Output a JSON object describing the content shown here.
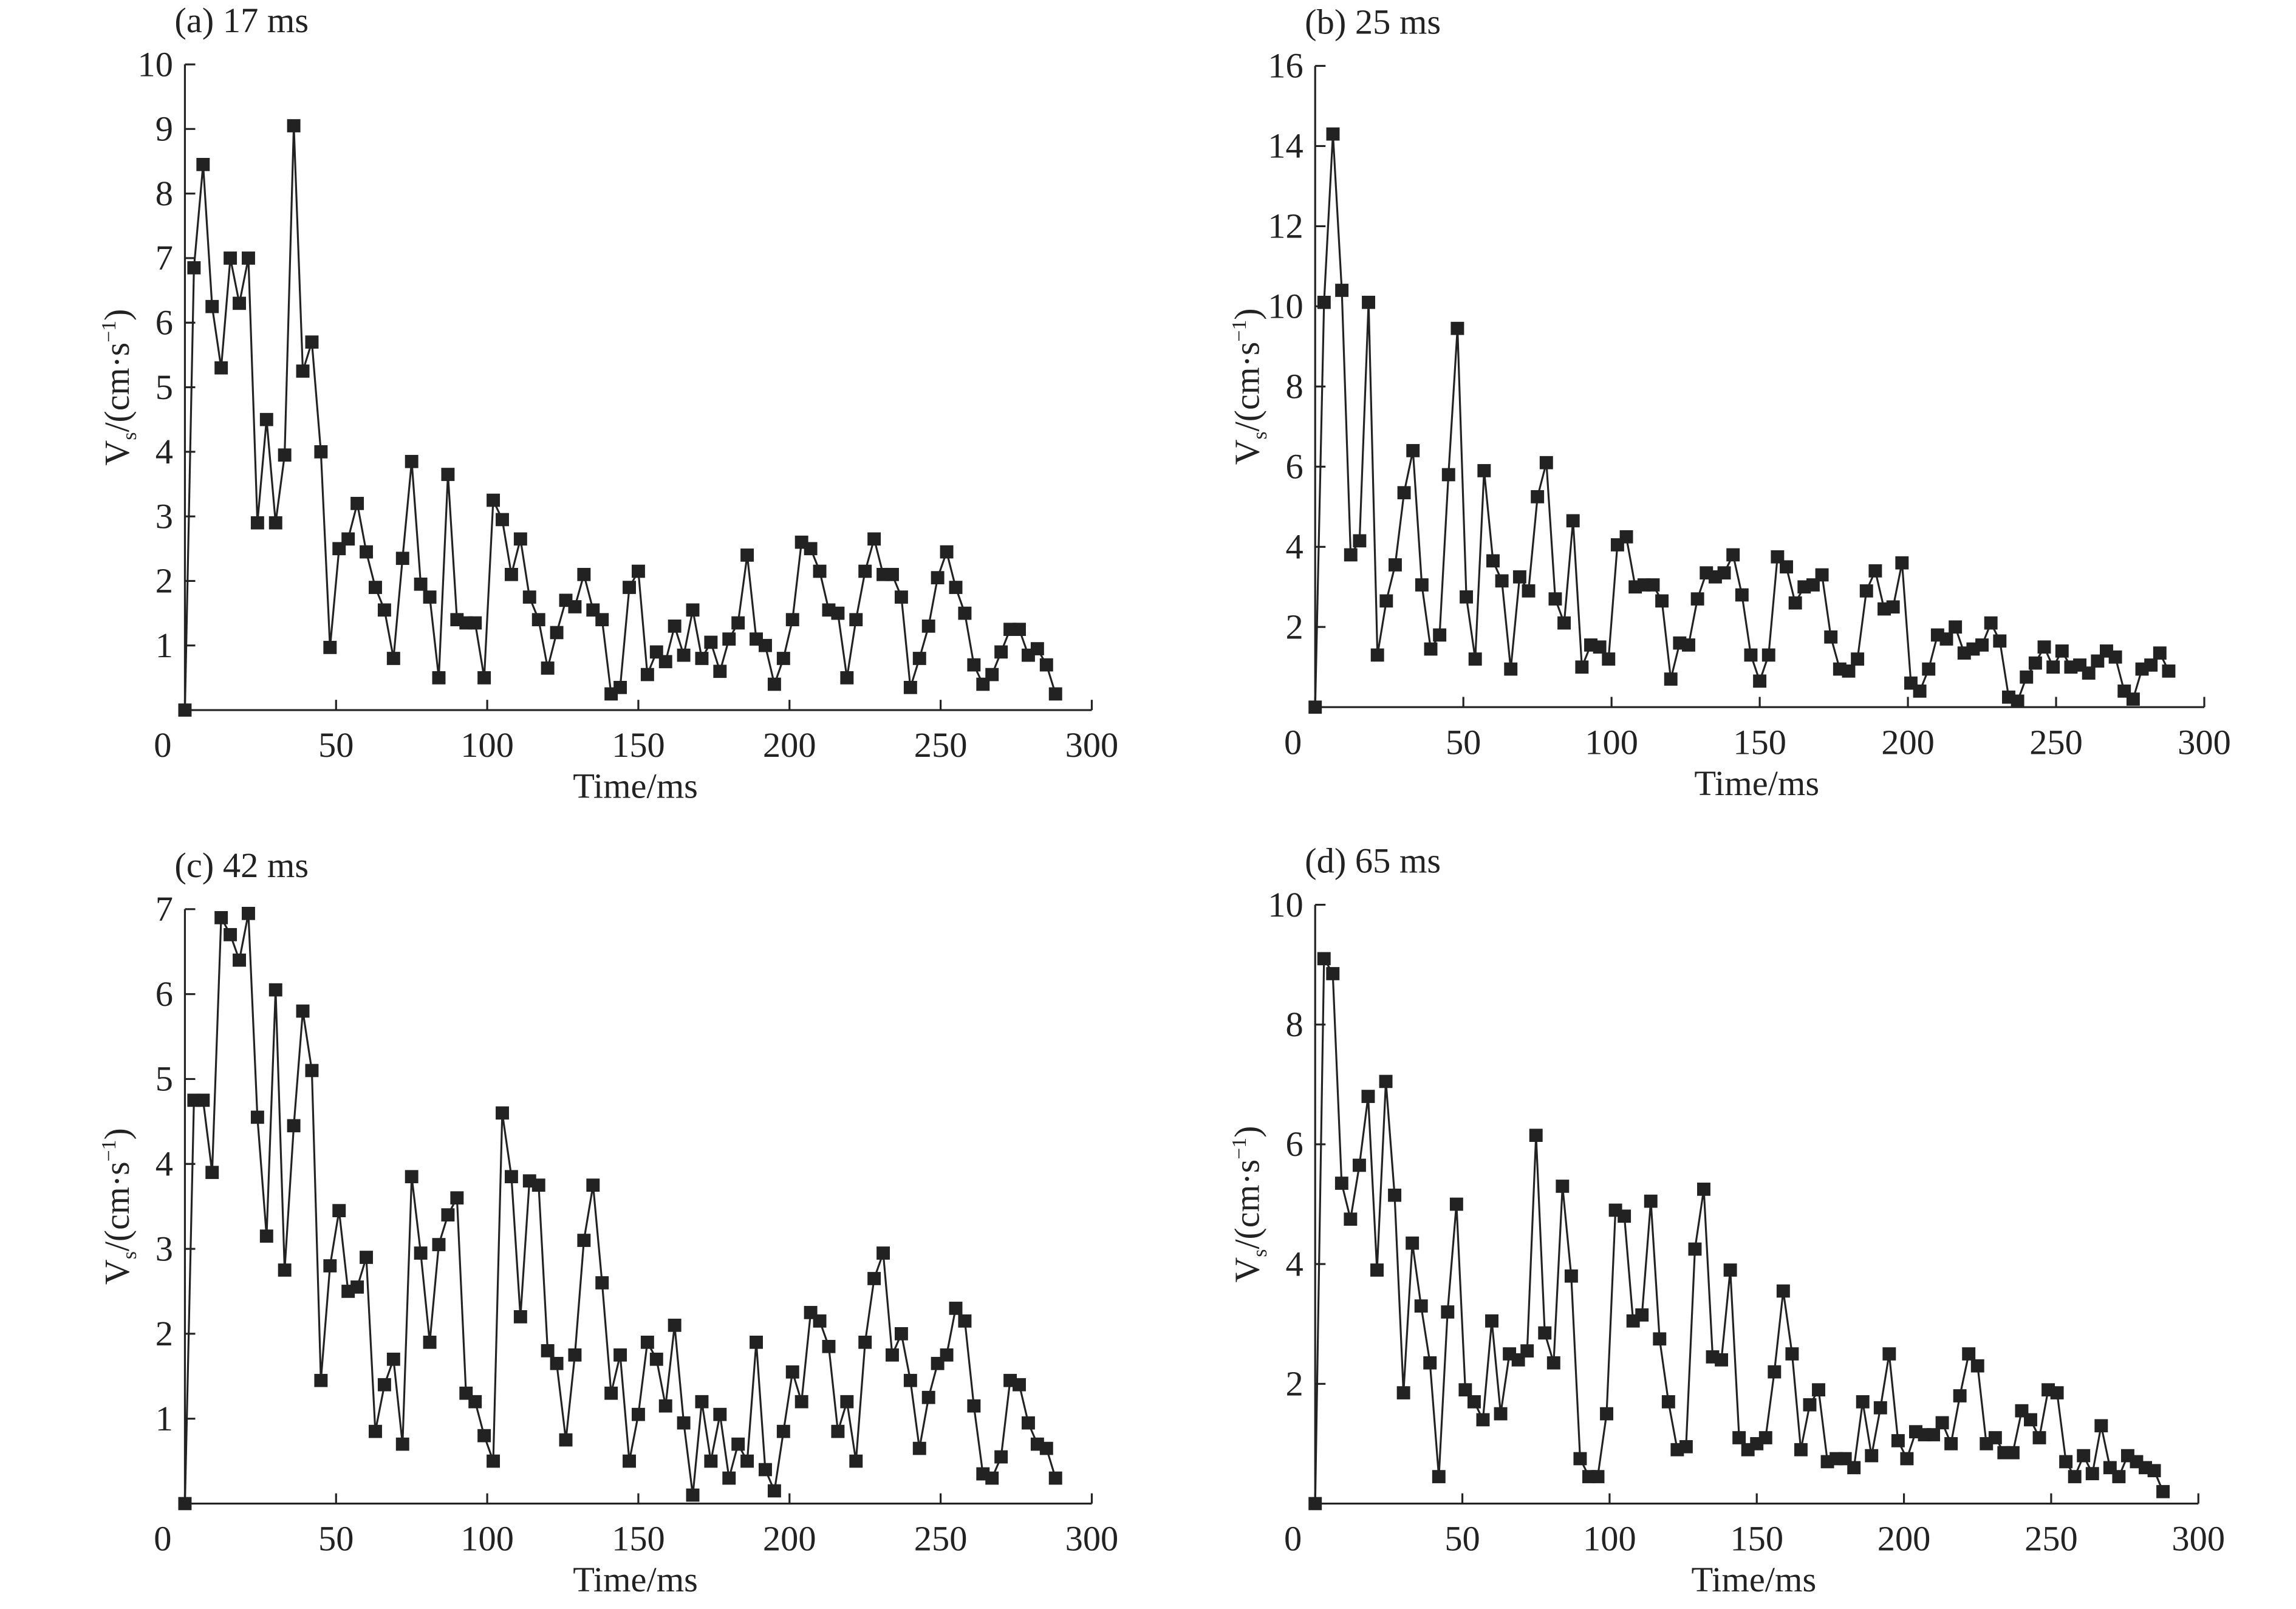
{
  "chart_data": [
    {
      "type": "line",
      "title": "(a) 17 ms",
      "x_label": "Time/ms",
      "y_label": {
        "main": "V",
        "sub": "s",
        "unit": "/(cm·s",
        "sup": "−1",
        "close": ")"
      },
      "color": "#222222",
      "x": [
        0,
        3,
        6,
        9,
        12,
        15,
        18,
        21,
        24,
        27,
        30,
        33,
        36,
        39,
        42,
        45,
        48,
        51,
        54,
        57,
        60,
        63,
        66,
        69,
        72,
        75,
        78,
        81,
        84,
        87,
        90,
        93,
        96,
        99,
        102,
        105,
        108,
        111,
        114,
        117,
        120,
        123,
        126,
        129,
        132,
        135,
        138,
        141,
        144,
        147,
        150,
        153,
        156,
        159,
        162,
        165,
        168,
        171,
        174,
        177,
        180,
        183,
        186,
        189,
        192,
        195,
        198,
        201,
        204,
        207,
        210,
        213,
        216,
        219,
        222,
        225,
        228,
        231,
        234,
        237,
        240,
        243,
        246,
        249,
        252,
        255,
        258,
        261,
        264,
        267,
        270,
        273,
        276,
        279,
        282,
        285,
        288
      ],
      "values": [
        0,
        6.85,
        8.45,
        6.25,
        5.3,
        7.0,
        6.3,
        7.0,
        2.9,
        4.5,
        2.9,
        3.95,
        9.05,
        5.25,
        5.7,
        4.0,
        0.97,
        2.5,
        2.65,
        3.2,
        2.45,
        1.9,
        1.55,
        0.8,
        2.35,
        3.85,
        1.95,
        1.75,
        0.5,
        3.65,
        1.4,
        1.35,
        1.35,
        0.5,
        3.25,
        2.95,
        2.1,
        2.65,
        1.75,
        1.4,
        0.65,
        1.2,
        1.7,
        1.6,
        2.1,
        1.55,
        1.4,
        0.25,
        0.35,
        1.9,
        2.15,
        0.55,
        0.9,
        0.75,
        1.3,
        0.85,
        1.55,
        0.8,
        1.05,
        0.6,
        1.1,
        1.35,
        2.4,
        1.1,
        1.0,
        0.4,
        0.8,
        1.4,
        2.6,
        2.5,
        2.15,
        1.55,
        1.5,
        0.5,
        1.4,
        2.15,
        2.65,
        2.1,
        2.1,
        1.75,
        0.35,
        0.8,
        1.3,
        2.05,
        2.45,
        1.9,
        1.5,
        0.7,
        0.4,
        0.55,
        0.9,
        1.25,
        1.25,
        0.85,
        0.95,
        0.7,
        0.25
      ],
      "xlim": [
        0,
        300
      ],
      "xticks": [
        0,
        50,
        100,
        150,
        200,
        250,
        300
      ],
      "ylim": [
        0,
        10
      ],
      "yticks": [
        1,
        2,
        3,
        4,
        5,
        6,
        7,
        8,
        9,
        10
      ]
    },
    {
      "type": "line",
      "title": "(b) 25 ms",
      "x_label": "Time/ms",
      "y_label": {
        "main": "V",
        "sub": "s",
        "unit": "/(cm·s",
        "sup": "−1",
        "close": ")"
      },
      "color": "#222222",
      "x": [
        0,
        3,
        6,
        9,
        12,
        15,
        18,
        21,
        24,
        27,
        30,
        33,
        36,
        39,
        42,
        45,
        48,
        51,
        54,
        57,
        60,
        63,
        66,
        69,
        72,
        75,
        78,
        81,
        84,
        87,
        90,
        93,
        96,
        99,
        102,
        105,
        108,
        111,
        114,
        117,
        120,
        123,
        126,
        129,
        132,
        135,
        138,
        141,
        144,
        147,
        150,
        153,
        156,
        159,
        162,
        165,
        168,
        171,
        174,
        177,
        180,
        183,
        186,
        189,
        192,
        195,
        198,
        201,
        204,
        207,
        210,
        213,
        216,
        219,
        222,
        225,
        228,
        231,
        234,
        237,
        240,
        243,
        246,
        249,
        252,
        255,
        258,
        261,
        264,
        267,
        270,
        273,
        276,
        279,
        282,
        285,
        288
      ],
      "values": [
        0,
        10.1,
        14.3,
        10.4,
        3.8,
        4.15,
        10.1,
        1.3,
        2.65,
        3.55,
        5.35,
        6.4,
        3.05,
        1.45,
        1.8,
        5.8,
        9.45,
        2.75,
        1.2,
        5.9,
        3.65,
        3.15,
        0.95,
        3.25,
        2.9,
        5.25,
        6.1,
        2.7,
        2.1,
        4.65,
        1.0,
        1.55,
        1.5,
        1.2,
        4.05,
        4.25,
        3.0,
        3.05,
        3.05,
        2.65,
        0.7,
        1.6,
        1.55,
        2.7,
        3.35,
        3.25,
        3.35,
        3.8,
        2.8,
        1.3,
        0.65,
        1.3,
        3.75,
        3.5,
        2.6,
        3.0,
        3.05,
        3.3,
        1.75,
        0.95,
        0.9,
        1.2,
        2.9,
        3.4,
        2.45,
        2.5,
        3.6,
        0.6,
        0.4,
        0.95,
        1.8,
        1.7,
        2.0,
        1.35,
        1.45,
        1.55,
        2.1,
        1.65,
        0.25,
        0.15,
        0.75,
        1.1,
        1.5,
        1.0,
        1.4,
        1.0,
        1.05,
        0.85,
        1.15,
        1.4,
        1.25,
        0.4,
        0.2,
        0.95,
        1.05,
        1.35,
        0.9
      ],
      "xlim": [
        0,
        300
      ],
      "xticks": [
        0,
        50,
        100,
        150,
        200,
        250,
        300
      ],
      "ylim": [
        0,
        16
      ],
      "yticks": [
        2,
        4,
        6,
        8,
        10,
        12,
        14,
        16
      ]
    },
    {
      "type": "line",
      "title": "(c) 42 ms",
      "x_label": "Time/ms",
      "y_label": {
        "main": "V",
        "sub": "s",
        "unit": "/(cm·s",
        "sup": "−1",
        "close": ")"
      },
      "color": "#222222",
      "x": [
        0,
        3,
        6,
        9,
        12,
        15,
        18,
        21,
        24,
        27,
        30,
        33,
        36,
        39,
        42,
        45,
        48,
        51,
        54,
        57,
        60,
        63,
        66,
        69,
        72,
        75,
        78,
        81,
        84,
        87,
        90,
        93,
        96,
        99,
        102,
        105,
        108,
        111,
        114,
        117,
        120,
        123,
        126,
        129,
        132,
        135,
        138,
        141,
        144,
        147,
        150,
        153,
        156,
        159,
        162,
        165,
        168,
        171,
        174,
        177,
        180,
        183,
        186,
        189,
        192,
        195,
        198,
        201,
        204,
        207,
        210,
        213,
        216,
        219,
        222,
        225,
        228,
        231,
        234,
        237,
        240,
        243,
        246,
        249,
        252,
        255,
        258,
        261,
        264,
        267,
        270,
        273,
        276,
        279,
        282,
        285,
        288
      ],
      "values": [
        0,
        4.75,
        4.75,
        3.9,
        6.9,
        6.7,
        6.4,
        6.95,
        4.55,
        3.15,
        6.05,
        2.75,
        4.45,
        5.8,
        5.1,
        1.45,
        2.8,
        3.45,
        2.5,
        2.55,
        2.9,
        0.85,
        1.4,
        1.7,
        0.7,
        3.85,
        2.95,
        1.9,
        3.05,
        3.4,
        3.6,
        1.3,
        1.2,
        0.8,
        0.5,
        4.6,
        3.85,
        2.2,
        3.8,
        3.75,
        1.8,
        1.65,
        0.75,
        1.75,
        3.1,
        3.75,
        2.6,
        1.3,
        1.75,
        0.5,
        1.05,
        1.9,
        1.7,
        1.15,
        2.1,
        0.95,
        0.1,
        1.2,
        0.5,
        1.05,
        0.3,
        0.7,
        0.5,
        1.9,
        0.4,
        0.15,
        0.85,
        1.55,
        1.2,
        2.25,
        2.15,
        1.85,
        0.85,
        1.2,
        0.5,
        1.9,
        2.65,
        2.95,
        1.75,
        2.0,
        1.45,
        0.65,
        1.25,
        1.65,
        1.75,
        2.3,
        2.15,
        1.15,
        0.35,
        0.3,
        0.55,
        1.45,
        1.4,
        0.95,
        0.7,
        0.65,
        0.3
      ],
      "xlim": [
        0,
        300
      ],
      "xticks": [
        0,
        50,
        100,
        150,
        200,
        250,
        300
      ],
      "ylim": [
        0,
        7
      ],
      "yticks": [
        1,
        2,
        3,
        4,
        5,
        6,
        7
      ]
    },
    {
      "type": "line",
      "title": "(d) 65 ms",
      "x_label": "Time/ms",
      "y_label": {
        "main": "V",
        "sub": "s",
        "unit": "/(cm·s",
        "sup": "−1",
        "close": ")"
      },
      "color": "#222222",
      "x": [
        0,
        3,
        6,
        9,
        12,
        15,
        18,
        21,
        24,
        27,
        30,
        33,
        36,
        39,
        42,
        45,
        48,
        51,
        54,
        57,
        60,
        63,
        66,
        69,
        72,
        75,
        78,
        81,
        84,
        87,
        90,
        93,
        96,
        99,
        102,
        105,
        108,
        111,
        114,
        117,
        120,
        123,
        126,
        129,
        132,
        135,
        138,
        141,
        144,
        147,
        150,
        153,
        156,
        159,
        162,
        165,
        168,
        171,
        174,
        177,
        180,
        183,
        186,
        189,
        192,
        195,
        198,
        201,
        204,
        207,
        210,
        213,
        216,
        219,
        222,
        225,
        228,
        231,
        234,
        237,
        240,
        243,
        246,
        249,
        252,
        255,
        258,
        261,
        264,
        267,
        270,
        273,
        276,
        279,
        282,
        285,
        288
      ],
      "values": [
        0,
        9.1,
        8.85,
        5.35,
        4.75,
        5.65,
        6.8,
        3.9,
        7.05,
        5.15,
        1.85,
        4.35,
        3.3,
        2.35,
        0.45,
        3.2,
        5.0,
        1.9,
        1.7,
        1.4,
        3.05,
        1.5,
        2.5,
        2.4,
        2.55,
        6.15,
        2.85,
        2.35,
        5.3,
        3.8,
        0.75,
        0.45,
        0.45,
        1.5,
        4.9,
        4.8,
        3.05,
        3.15,
        5.05,
        2.75,
        1.7,
        0.9,
        0.95,
        4.25,
        5.25,
        2.45,
        2.4,
        3.9,
        1.1,
        0.9,
        1.0,
        1.1,
        2.2,
        3.55,
        2.5,
        0.9,
        1.65,
        1.9,
        0.7,
        0.75,
        0.75,
        0.6,
        1.7,
        0.8,
        1.6,
        2.5,
        1.05,
        0.75,
        1.2,
        1.15,
        1.15,
        1.35,
        1.0,
        1.8,
        2.5,
        2.3,
        1.0,
        1.1,
        0.85,
        0.85,
        1.55,
        1.4,
        1.1,
        1.9,
        1.85,
        0.7,
        0.45,
        0.8,
        0.5,
        1.3,
        0.6,
        0.45,
        0.8,
        0.7,
        0.6,
        0.55,
        0.2
      ],
      "xlim": [
        0,
        300
      ],
      "xticks": [
        0,
        50,
        100,
        150,
        200,
        250,
        300
      ],
      "ylim": [
        0,
        10
      ],
      "yticks": [
        2,
        4,
        6,
        8,
        10
      ]
    }
  ]
}
